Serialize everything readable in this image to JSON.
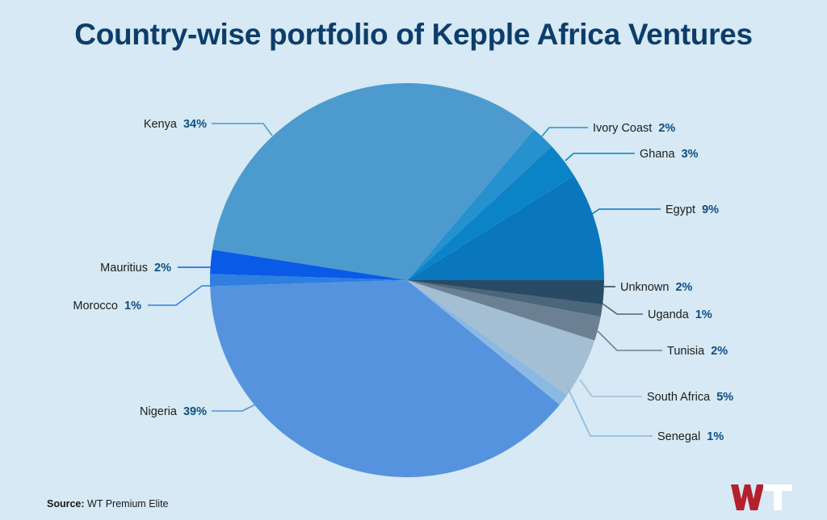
{
  "chart_data": {
    "type": "pie",
    "title": "Country-wise portfolio of Kepple Africa Ventures",
    "slices": [
      {
        "label": "Egypt",
        "value": 9,
        "pct_label": "9%",
        "color": "#0a77bd"
      },
      {
        "label": "Ghana",
        "value": 3,
        "pct_label": "3%",
        "color": "#0b84c7"
      },
      {
        "label": "Ivory Coast",
        "value": 2,
        "pct_label": "2%",
        "color": "#2591cf"
      },
      {
        "label": "Kenya",
        "value": 34,
        "pct_label": "34%",
        "color": "#4d9bce"
      },
      {
        "label": "Mauritius",
        "value": 2,
        "pct_label": "2%",
        "color": "#0a5ae8"
      },
      {
        "label": "Morocco",
        "value": 1,
        "pct_label": "1%",
        "color": "#2f7fe0"
      },
      {
        "label": "Nigeria",
        "value": 39,
        "pct_label": "39%",
        "color": "#5593de"
      },
      {
        "label": "Senegal",
        "value": 1,
        "pct_label": "1%",
        "color": "#8ab9e3"
      },
      {
        "label": "South Africa",
        "value": 5,
        "pct_label": "5%",
        "color": "#a4bfd4"
      },
      {
        "label": "Tunisia",
        "value": 2,
        "pct_label": "2%",
        "color": "#6b8193"
      },
      {
        "label": "Uganda",
        "value": 1,
        "pct_label": "1%",
        "color": "#4b657a"
      },
      {
        "label": "Unknown",
        "value": 2,
        "pct_label": "2%",
        "color": "#294a63"
      }
    ]
  },
  "source": {
    "prefix": "Source:",
    "text": "WT Premium Elite"
  },
  "logo": {
    "text": "WT"
  }
}
